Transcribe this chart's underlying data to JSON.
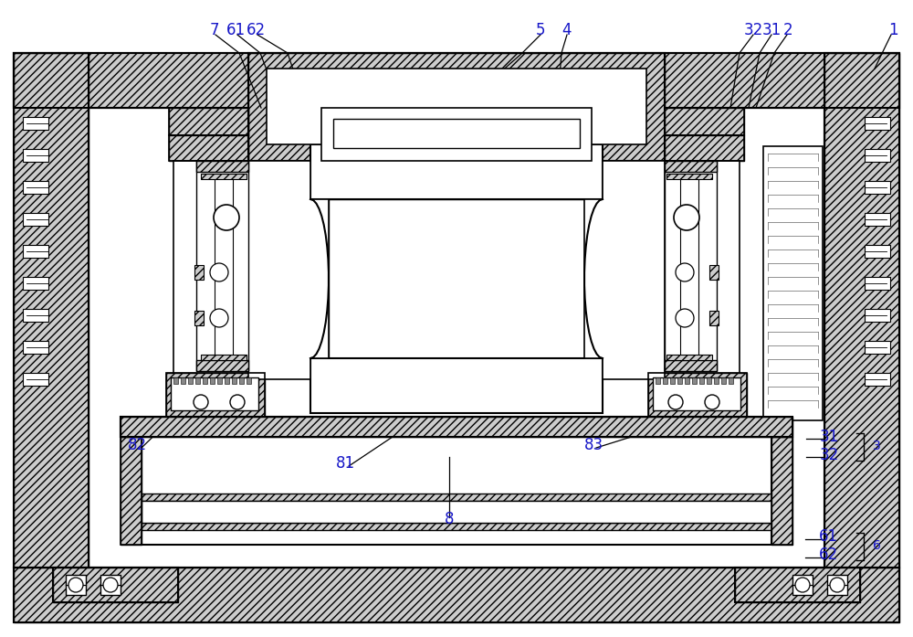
{
  "bg_color": "#ffffff",
  "line_color": "#000000",
  "label_color": "#1616c8",
  "hatch_fc": "#cccccc",
  "figsize": [
    10.0,
    6.97
  ],
  "dpi": 100
}
